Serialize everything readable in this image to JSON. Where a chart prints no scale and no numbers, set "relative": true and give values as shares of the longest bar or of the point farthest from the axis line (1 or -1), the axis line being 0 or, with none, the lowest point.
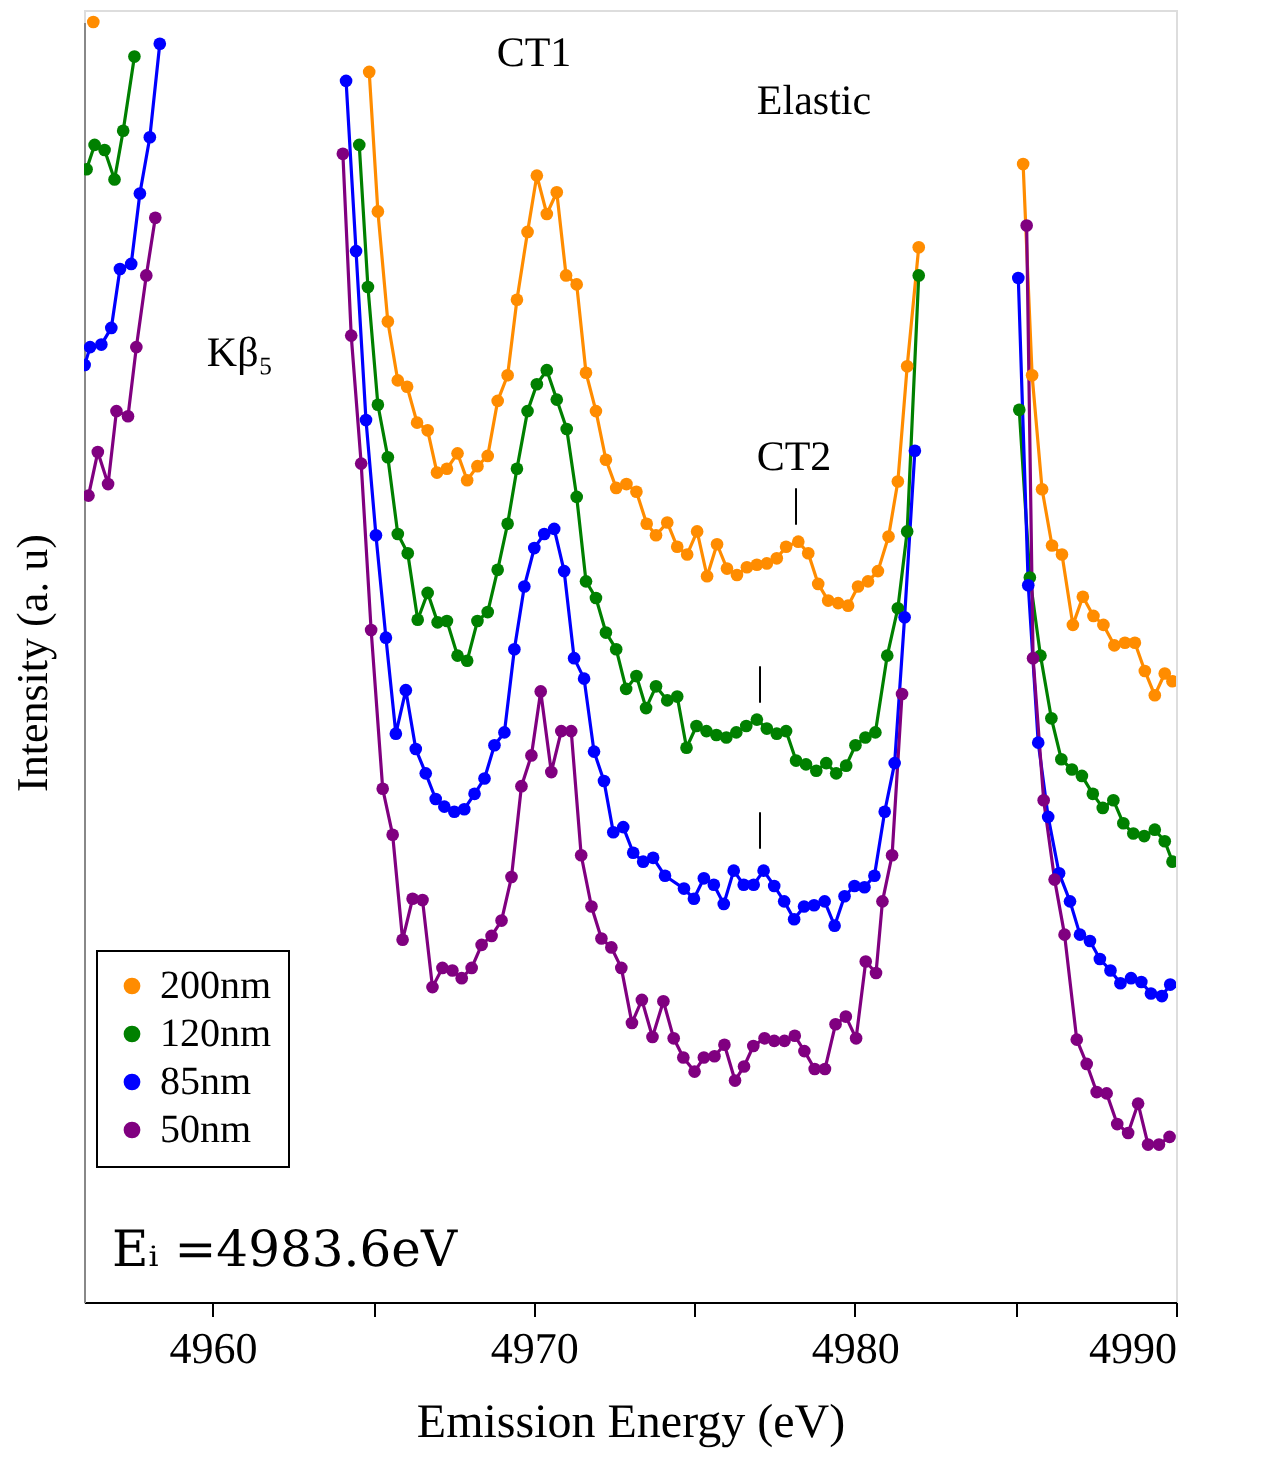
{
  "chart_data": {
    "type": "line",
    "relative": true,
    "xlabel": "Emission Energy (eV)",
    "ylabel": "Intensity (a. u)",
    "xlim": [
      4956,
      4990
    ],
    "xticks": [
      4960,
      {
        "value": 4965,
        "label": null
      },
      4970,
      {
        "value": 4975,
        "label": null
      },
      4980,
      {
        "value": 4985,
        "label": null
      },
      4990
    ],
    "marker": "circle",
    "line_style": "solid",
    "legend": "bottom left",
    "annotations": [
      "CT1",
      "Elastic",
      "Kβ₅",
      "CT2",
      "|",
      "|",
      "|",
      "Eᵢ =4983.6eV"
    ],
    "series": [
      {
        "name": "200nm",
        "color": "#ff8c00",
        "x": [
          4956.29,
          4961,
          4964.88,
          4965.15,
          4965.46,
          4965.77,
          4966.06,
          4966.37,
          4966.7,
          4966.99,
          4967.3,
          4967.63,
          4967.93,
          4968.25,
          4968.57,
          4968.88,
          4969.19,
          4969.48,
          4969.81,
          4970.1,
          4970.41,
          4970.72,
          4971.01,
          4971.34,
          4971.63,
          4971.94,
          4972.25,
          4972.57,
          4972.89,
          4973.2,
          4973.52,
          4973.81,
          4974.16,
          4974.47,
          4974.78,
          4975.09,
          4975.4,
          4975.71,
          4976.02,
          4976.33,
          4976.64,
          4976.95,
          4977.26,
          4977.57,
          4977.86,
          4978.24,
          4978.55,
          4978.86,
          4979.17,
          4979.48,
          4979.79,
          4980.1,
          4980.41,
          4980.72,
          4981.05,
          4981.34,
          4981.63,
          4981.99,
          4984,
          4985.24,
          4985.52,
          4985.83,
          4986.14,
          4986.45,
          4986.79,
          4987.1,
          4987.43,
          4987.74,
          4988.08,
          4988.41,
          4988.72,
          4989.03,
          4989.34,
          4989.65,
          4989.89
        ],
        "values": [
          1.0,
          null,
          0.961,
          0.852,
          0.766,
          0.72,
          0.715,
          0.687,
          0.681,
          0.648,
          0.651,
          0.663,
          0.642,
          0.653,
          0.661,
          0.704,
          0.724,
          0.783,
          0.836,
          0.88,
          0.85,
          0.867,
          0.802,
          0.795,
          0.726,
          0.696,
          0.658,
          0.636,
          0.639,
          0.633,
          0.608,
          0.599,
          0.609,
          0.59,
          0.584,
          0.602,
          0.567,
          0.592,
          0.573,
          0.568,
          0.574,
          0.576,
          0.577,
          0.581,
          0.59,
          0.594,
          0.585,
          0.561,
          0.548,
          0.546,
          0.544,
          0.559,
          0.563,
          0.571,
          0.598,
          0.641,
          0.731,
          0.824,
          null,
          0.889,
          0.724,
          0.635,
          0.591,
          0.584,
          0.529,
          0.551,
          0.536,
          0.529,
          0.513,
          0.515,
          0.515,
          0.493,
          0.474,
          0.491,
          0.485
        ]
      },
      {
        "name": "120nm",
        "color": "#008000",
        "x": [
          4956.08,
          4956.33,
          4956.64,
          4956.95,
          4957.22,
          4957.57,
          4961,
          4964.57,
          4964.84,
          4965.15,
          4965.46,
          4965.77,
          4966.08,
          4966.39,
          4966.7,
          4967.01,
          4967.3,
          4967.63,
          4967.93,
          4968.25,
          4968.57,
          4968.88,
          4969.19,
          4969.48,
          4969.81,
          4970.1,
          4970.41,
          4970.72,
          4971.03,
          4971.34,
          4971.63,
          4971.94,
          4972.25,
          4972.57,
          4972.88,
          4973.2,
          4973.5,
          4973.81,
          4974.16,
          4974.47,
          4974.76,
          4975.07,
          4975.38,
          4975.69,
          4976.0,
          4976.31,
          4976.62,
          4976.95,
          4977.26,
          4977.57,
          4977.86,
          4978.17,
          4978.48,
          4978.8,
          4979.11,
          4979.42,
          4979.73,
          4980.02,
          4980.33,
          4980.64,
          4981.01,
          4981.34,
          4981.63,
          4981.99,
          4984,
          4985.12,
          4985.45,
          4985.78,
          4986.12,
          4986.43,
          4986.76,
          4987.07,
          4987.41,
          4987.72,
          4988.05,
          4988.36,
          4988.67,
          4989.01,
          4989.34,
          4989.65,
          4989.89
        ],
        "values": [
          0.885,
          0.904,
          0.9,
          0.877,
          0.915,
          0.973,
          null,
          0.904,
          0.793,
          0.701,
          0.66,
          0.6,
          0.585,
          0.533,
          0.554,
          0.531,
          0.532,
          0.505,
          0.501,
          0.532,
          0.539,
          0.572,
          0.608,
          0.651,
          0.696,
          0.717,
          0.728,
          0.705,
          0.682,
          0.629,
          0.563,
          0.55,
          0.523,
          0.51,
          0.479,
          0.489,
          0.464,
          0.481,
          0.47,
          0.473,
          0.433,
          0.45,
          0.446,
          0.443,
          0.441,
          0.445,
          0.45,
          0.455,
          0.448,
          0.444,
          0.446,
          0.423,
          0.42,
          0.415,
          0.421,
          0.413,
          0.419,
          0.435,
          0.441,
          0.445,
          0.505,
          0.542,
          0.602,
          0.802,
          null,
          0.697,
          0.566,
          0.505,
          0.456,
          0.424,
          0.416,
          0.411,
          0.397,
          0.386,
          0.392,
          0.374,
          0.366,
          0.364,
          0.369,
          0.36,
          0.344
        ]
      },
      {
        "name": "85nm",
        "color": "#0000ff",
        "x": [
          4956.02,
          4956.19,
          4956.54,
          4956.85,
          4957.12,
          4957.47,
          4957.74,
          4958.05,
          4958.36,
          4961,
          4964.16,
          4964.47,
          4964.78,
          4965.09,
          4965.4,
          4965.71,
          4966.02,
          4966.33,
          4966.64,
          4966.95,
          4967.22,
          4967.53,
          4967.84,
          4968.16,
          4968.47,
          4968.78,
          4969.09,
          4969.4,
          4969.71,
          4970.02,
          4970.33,
          4970.64,
          4970.95,
          4971.26,
          4971.57,
          4971.88,
          4972.19,
          4972.48,
          4972.79,
          4973.1,
          4973.41,
          4973.72,
          4974.09,
          4974.68,
          4974.99,
          4975.3,
          4975.61,
          4975.92,
          4976.23,
          4976.54,
          4976.85,
          4977.16,
          4977.49,
          4977.8,
          4978.11,
          4978.42,
          4978.73,
          4979.06,
          4979.37,
          4979.68,
          4979.99,
          4980.3,
          4980.61,
          4980.93,
          4981.24,
          4981.55,
          4981.87,
          4984,
          4985.09,
          4985.4,
          4985.71,
          4986.02,
          4986.36,
          4986.7,
          4987.01,
          4987.32,
          4987.63,
          4987.96,
          4988.27,
          4988.6,
          4988.92,
          4989.22,
          4989.56,
          4989.82
        ],
        "values": [
          0.732,
          0.746,
          0.748,
          0.761,
          0.807,
          0.811,
          0.866,
          0.91,
          0.983,
          null,
          0.954,
          0.821,
          0.689,
          0.599,
          0.519,
          0.444,
          0.478,
          0.432,
          0.413,
          0.393,
          0.387,
          0.383,
          0.385,
          0.397,
          0.409,
          0.435,
          0.445,
          0.51,
          0.559,
          0.589,
          0.6,
          0.604,
          0.571,
          0.503,
          0.487,
          0.43,
          0.407,
          0.367,
          0.371,
          0.351,
          0.344,
          0.347,
          0.333,
          0.323,
          0.315,
          0.331,
          0.326,
          0.311,
          0.337,
          0.326,
          0.326,
          0.337,
          0.325,
          0.313,
          0.299,
          0.309,
          0.31,
          0.313,
          0.294,
          0.317,
          0.325,
          0.324,
          0.333,
          0.383,
          0.421,
          0.535,
          0.665,
          null,
          0.8,
          0.56,
          0.437,
          0.379,
          0.335,
          0.313,
          0.287,
          0.282,
          0.268,
          0.259,
          0.249,
          0.253,
          0.25,
          0.241,
          0.239,
          0.248
        ]
      },
      {
        "name": "50nm",
        "color": "#800080",
        "x": [
          4956.14,
          4956.43,
          4956.75,
          4957.01,
          4957.37,
          4957.63,
          4957.94,
          4958.22,
          4961,
          4964.06,
          4964.32,
          4964.63,
          4964.94,
          4965.3,
          4965.61,
          4965.92,
          4966.23,
          4966.54,
          4966.85,
          4967.16,
          4967.47,
          4967.76,
          4968.07,
          4968.38,
          4968.69,
          4969.0,
          4969.31,
          4969.62,
          4969.93,
          4970.22,
          4970.55,
          4970.86,
          4971.17,
          4971.48,
          4971.8,
          4972.11,
          4972.42,
          4972.73,
          4973.06,
          4973.37,
          4973.7,
          4974.04,
          4974.36,
          4974.66,
          4975.01,
          4975.3,
          4975.63,
          4975.94,
          4976.27,
          4976.55,
          4976.84,
          4977.19,
          4977.49,
          4977.81,
          4978.13,
          4978.43,
          4978.75,
          4979.07,
          4979.4,
          4979.72,
          4980.04,
          4980.34,
          4980.66,
          4980.86,
          4981.16,
          4981.47,
          4984,
          4985.35,
          4985.55,
          4985.88,
          4986.22,
          4986.53,
          4986.91,
          4987.22,
          4987.53,
          4987.84,
          4988.17,
          4988.51,
          4988.82,
          4989.13,
          4989.47,
          4989.8
        ],
        "values": [
          0.63,
          0.664,
          0.639,
          0.696,
          0.692,
          0.746,
          0.802,
          0.847,
          null,
          0.897,
          0.755,
          0.655,
          0.525,
          0.401,
          0.365,
          0.283,
          0.315,
          0.314,
          0.246,
          0.261,
          0.259,
          0.253,
          0.261,
          0.279,
          0.286,
          0.298,
          0.332,
          0.403,
          0.427,
          0.477,
          0.414,
          0.446,
          0.446,
          0.349,
          0.309,
          0.284,
          0.277,
          0.261,
          0.218,
          0.236,
          0.207,
          0.235,
          0.206,
          0.191,
          0.18,
          0.191,
          0.192,
          0.201,
          0.173,
          0.184,
          0.2,
          0.206,
          0.204,
          0.204,
          0.208,
          0.196,
          0.182,
          0.182,
          0.217,
          0.223,
          0.206,
          0.266,
          0.257,
          0.313,
          0.349,
          0.475,
          null,
          0.841,
          0.503,
          0.392,
          0.33,
          0.287,
          0.205,
          0.186,
          0.164,
          0.163,
          0.139,
          0.132,
          0.155,
          0.123,
          0.123,
          0.129
        ]
      }
    ]
  }
}
